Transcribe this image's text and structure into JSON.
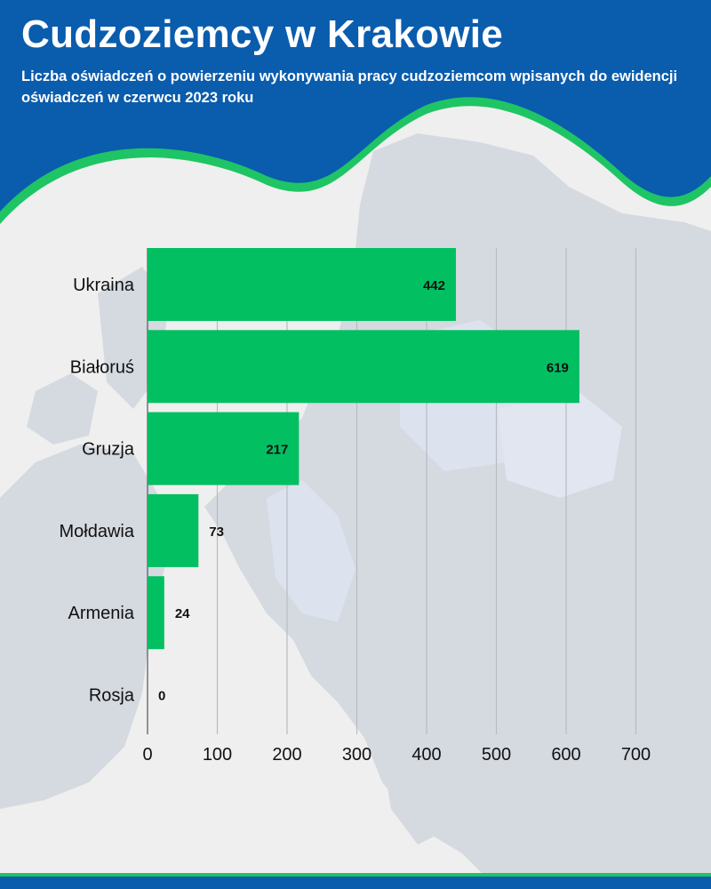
{
  "header": {
    "title": "Cudzoziemcy w Krakowie",
    "subtitle": "Liczba oświadczeń o powierzeniu wykonywania pracy cudzoziemcom wpisanych do ewidencji oświadczeń w czerwcu 2023 roku"
  },
  "colors": {
    "header_bg": "#0a5cad",
    "accent_line": "#1fc465",
    "bar": "#02bf62",
    "map_land": "#d5d9e0",
    "map_sea": "#efefef",
    "gridline": "#b8bcc2",
    "footer": "#0a5cad"
  },
  "chart_data": {
    "type": "bar",
    "orientation": "horizontal",
    "categories": [
      "Ukraina",
      "Białoruś",
      "Gruzja",
      "Mołdawia",
      "Armenia",
      "Rosja"
    ],
    "values": [
      442,
      619,
      217,
      73,
      24,
      0
    ],
    "title": "",
    "xlabel": "",
    "ylabel": "",
    "xlim": [
      0,
      700
    ],
    "xticks": [
      "0",
      "100",
      "200",
      "300",
      "400",
      "500",
      "600",
      "700"
    ],
    "grid": true,
    "legend": "none"
  }
}
